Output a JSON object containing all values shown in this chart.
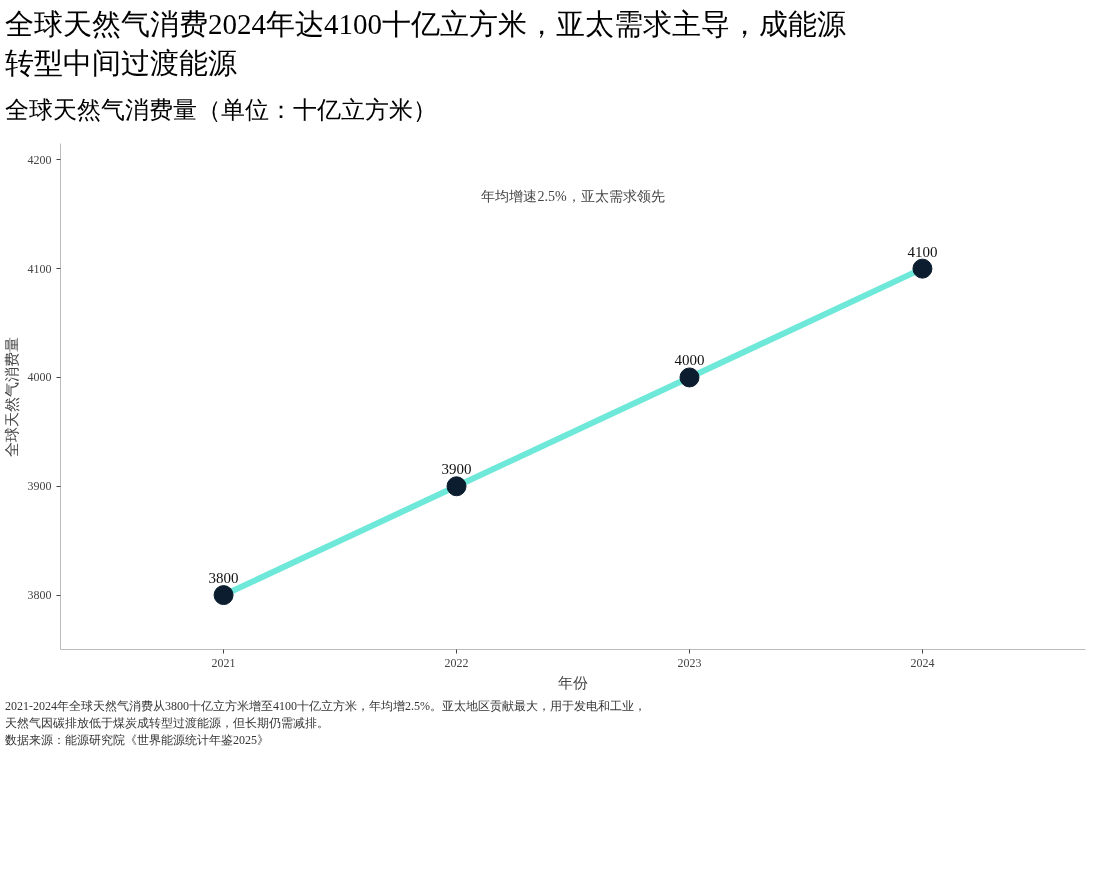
{
  "chart_data": {
    "type": "line",
    "title": "全球天然气消费2024年达4100十亿立方米，亚太需求主导，成能源转型中间过渡能源",
    "subtitle": "全球天然气消费量（单位：十亿立方米）",
    "xlabel": "年份",
    "ylabel": "全球天然气消费量",
    "x": [
      2021,
      2022,
      2023,
      2024
    ],
    "series": [
      {
        "color": "#6ee8d8",
        "values": [
          3800,
          3900,
          4000,
          4100
        ]
      }
    ],
    "marker": "circle",
    "data_labels": true,
    "grid": false,
    "xlim": [
      2020.3,
      2024.7
    ],
    "xticks": [
      2021,
      2022,
      2023,
      2024
    ],
    "ylim": [
      3750,
      4215
    ],
    "yticks": [
      3800,
      3900,
      4000,
      4100,
      4200
    ],
    "annotations": [
      "年均增速2.5%，亚太需求领先",
      "2021-2024年全球天然气消费从3800十亿立方米增至4100十亿立方米，年均增2.5%。亚太地区贡献最大，用于发电和工业，",
      "天然气因碳排放低于煤炭成转型过渡能源，但长期仍需减排。",
      "数据来源：能源研究院《世界能源统计年鉴2025》"
    ]
  }
}
